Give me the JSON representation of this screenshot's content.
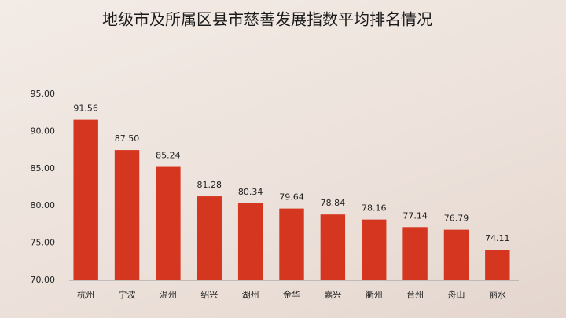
{
  "chart_data": {
    "type": "bar",
    "title": "地级市及所属区县市慈善发展指数平均排名情况",
    "categories": [
      "杭州",
      "宁波",
      "温州",
      "绍兴",
      "湖州",
      "金华",
      "嘉兴",
      "衢州",
      "台州",
      "舟山",
      "丽水"
    ],
    "values": [
      91.56,
      87.5,
      85.24,
      81.28,
      80.34,
      79.64,
      78.84,
      78.16,
      77.14,
      76.79,
      74.11
    ],
    "value_labels": [
      "91.56",
      "87.50",
      "85.24",
      "81.28",
      "80.34",
      "79.64",
      "78.84",
      "78.16",
      "77.14",
      "76.79",
      "74.11"
    ],
    "color": "#d5361f",
    "ylim": [
      70,
      95
    ],
    "yticks": [
      {
        "value": 70,
        "label": "70.00"
      },
      {
        "value": 75,
        "label": "75.00"
      },
      {
        "value": 80,
        "label": "80.00"
      },
      {
        "value": 85,
        "label": "85.00"
      },
      {
        "value": 90,
        "label": "90.00"
      },
      {
        "value": 95,
        "label": "95.00"
      }
    ],
    "grid": false
  }
}
